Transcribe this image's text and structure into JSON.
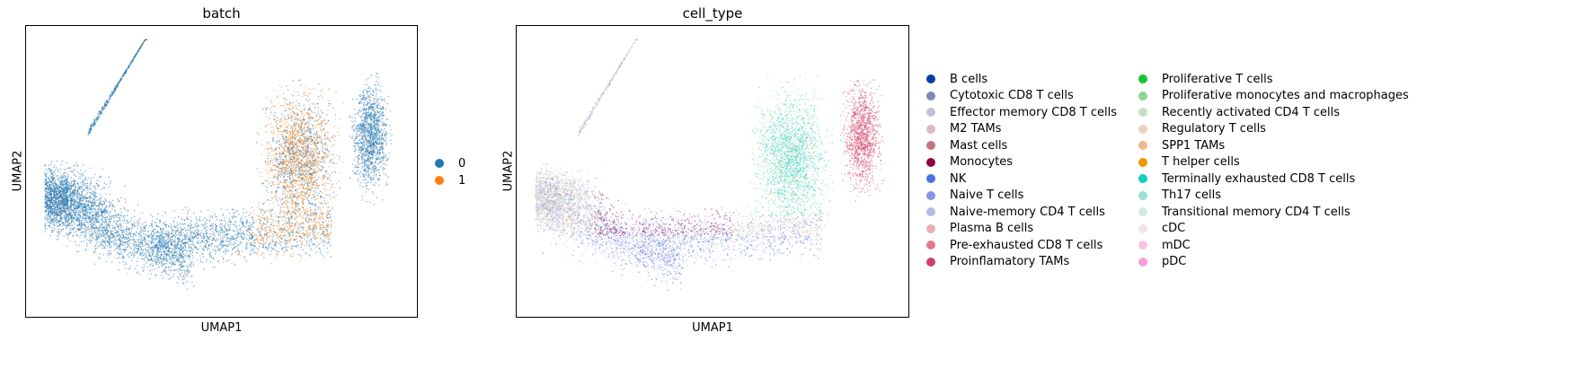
{
  "chart_data": [
    {
      "type": "scatter",
      "title": "batch",
      "xlabel": "UMAP1",
      "ylabel": "UMAP2",
      "axis_ticks": "none",
      "grid": false,
      "legend_position": "right",
      "categories": [
        "0",
        "1"
      ],
      "colors": [
        "#1f77b4",
        "#ff7f0e"
      ],
      "regions": [
        {
          "category": "0",
          "area": "entire embedding, densest in arc and lower-left lobe"
        },
        {
          "category": "1",
          "area": "right-center lobe and lower-middle region"
        }
      ]
    },
    {
      "type": "scatter",
      "title": "cell_type",
      "xlabel": "UMAP1",
      "ylabel": "UMAP2",
      "axis_ticks": "none",
      "grid": false,
      "legend_position": "right",
      "categories": [
        "B cells",
        "Cytotoxic CD8 T cells",
        "Effector memory CD8 T cells",
        "M2 TAMs",
        "Mast cells",
        "Monocytes",
        "NK",
        "Naive T cells",
        "Naive-memory CD4 T cells",
        "Plasma B cells",
        "Pre-exhausted CD8 T cells",
        "Proinflamatory TAMs",
        "Proliferative T cells",
        "Proliferative monocytes and macrophages",
        "Recently activated CD4 T cells",
        "Regulatory T cells",
        "SPP1 TAMs",
        "T helper cells",
        "Terminally exhausted CD8 T cells",
        "Th17 cells",
        "Transitional memory CD4 T cells",
        "cDC",
        "mDC",
        "pDC"
      ],
      "colors": [
        "#023fa5",
        "#7d87b9",
        "#bec1d4",
        "#d6bcc0",
        "#bb7784",
        "#8e063b",
        "#4a6fe3",
        "#8595e1",
        "#b5bbe3",
        "#e6afb9",
        "#e07b91",
        "#d33f6a",
        "#11c638",
        "#8dd593",
        "#c6dec7",
        "#ead3c6",
        "#f0b98d",
        "#ef9708",
        "#0fcfc0",
        "#9cded6",
        "#d5eae7",
        "#f3e1eb",
        "#f6c4e1",
        "#f79cd4"
      ],
      "regions": [
        {
          "category": "Monocytes",
          "area": "left-middle band"
        },
        {
          "category": "Proinflamatory TAMs",
          "area": "far right lobe"
        },
        {
          "category": "Th17 cells",
          "area": "right-center lobe"
        },
        {
          "category": "NK",
          "area": "lower-middle band"
        }
      ]
    }
  ]
}
